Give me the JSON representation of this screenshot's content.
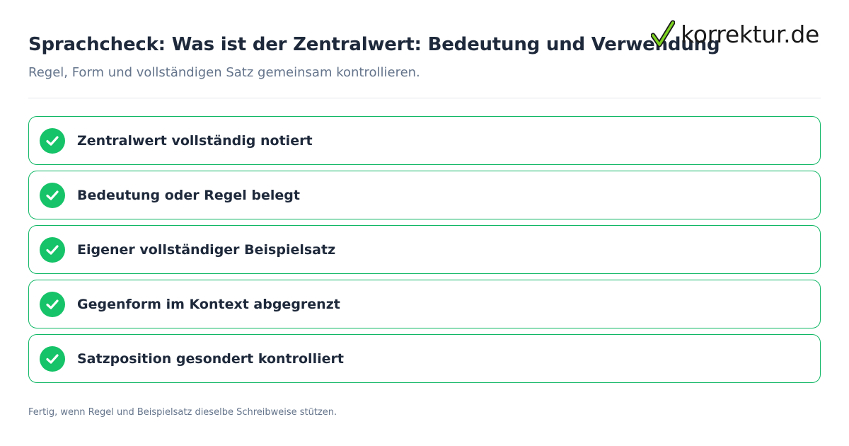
{
  "header": {
    "title": "Sprachcheck: Was ist der Zentralwert: Bedeutung und Verwendung",
    "subtitle": "Regel, Form und vollständigen Satz gemeinsam kontrollieren."
  },
  "logo": {
    "text": "korrektur.de",
    "icon": "checkmark-icon",
    "check_color": "#7ed321"
  },
  "checklist": {
    "items": [
      {
        "label": "Zentralwert vollständig notiert",
        "status": "checked"
      },
      {
        "label": "Bedeutung oder Regel belegt",
        "status": "checked"
      },
      {
        "label": "Eigener vollständiger Beispielsatz",
        "status": "checked"
      },
      {
        "label": "Gegenform im Kontext abgegrenzt",
        "status": "checked"
      },
      {
        "label": "Satzposition gesondert kontrolliert",
        "status": "checked"
      }
    ],
    "border_color": "#10b765",
    "check_color": "#16c368"
  },
  "footer": {
    "text": "Fertig, wenn Regel und Beispielsatz dieselbe Schreibweise stützen."
  }
}
